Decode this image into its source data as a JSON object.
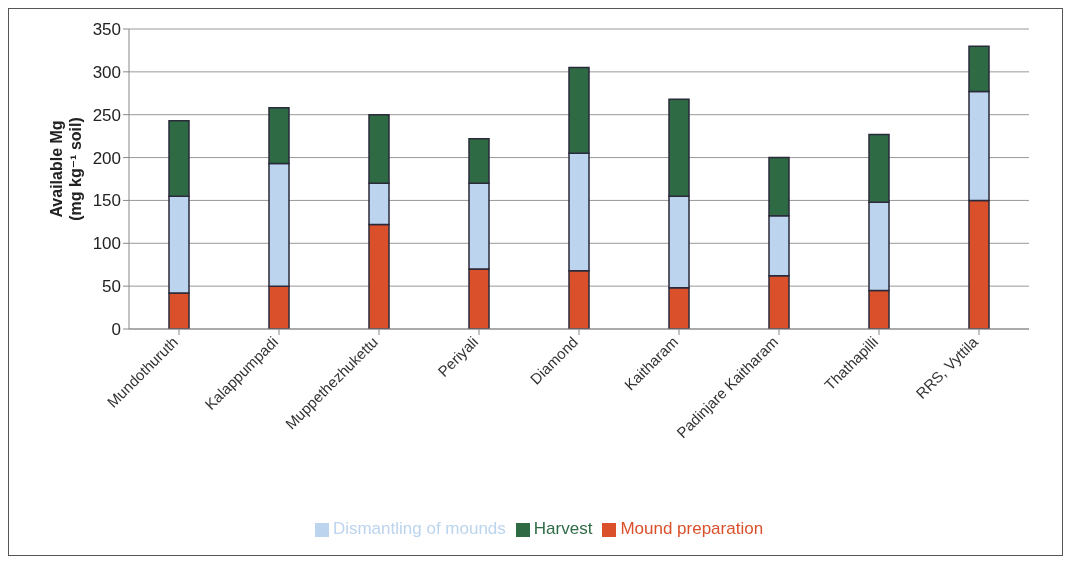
{
  "chart_data": {
    "type": "bar",
    "stacked": true,
    "ylabel": "Available Mg\n(mg kg⁻¹ soil)",
    "categories": [
      "Mundothuruth",
      "Kalappumpadi",
      "Muppethezhukettu",
      "Periyali",
      "Diamond",
      "Kaitharam",
      "Padinjare Kaitharam",
      "Thathapilli",
      "RRS, Vyttila"
    ],
    "series": [
      {
        "name": "Mound preparation",
        "color": "#d9502a",
        "values": [
          42,
          50,
          122,
          70,
          68,
          48,
          62,
          45,
          150
        ]
      },
      {
        "name": "Dismantling of mounds",
        "color": "#bcd4ee",
        "values": [
          113,
          143,
          48,
          100,
          137,
          107,
          70,
          103,
          127
        ]
      },
      {
        "name": "Harvest",
        "color": "#2e6b45",
        "values": [
          88,
          65,
          80,
          52,
          100,
          113,
          68,
          79,
          53
        ]
      }
    ],
    "ylim": [
      0,
      350
    ],
    "yticks": [
      0,
      50,
      100,
      150,
      200,
      250,
      300,
      350
    ],
    "grid": "y",
    "legend": "bottom"
  }
}
